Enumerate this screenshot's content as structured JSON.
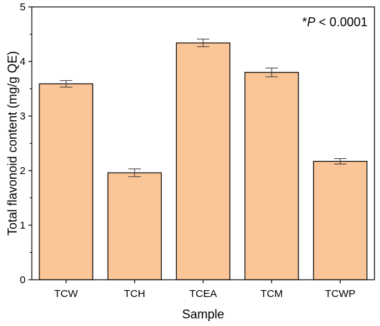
{
  "chart_data": {
    "type": "bar",
    "categories": [
      "TCW",
      "TCH",
      "TCEA",
      "TCM",
      "TCWP"
    ],
    "values": [
      3.59,
      1.96,
      4.34,
      3.8,
      2.17
    ],
    "error": [
      0.06,
      0.07,
      0.07,
      0.08,
      0.05
    ],
    "xlabel": "Sample",
    "ylabel": "Total flavonoid content (mg/g QE)",
    "ylim": [
      0,
      5
    ],
    "yticks": [
      0,
      1,
      2,
      3,
      4,
      5
    ],
    "annotation": {
      "prefix": "*",
      "italic": "P",
      "suffix": " < 0.0001"
    },
    "bar_color": "#FBC697",
    "bar_edge": "#000000",
    "grid": false,
    "legend": "none"
  }
}
